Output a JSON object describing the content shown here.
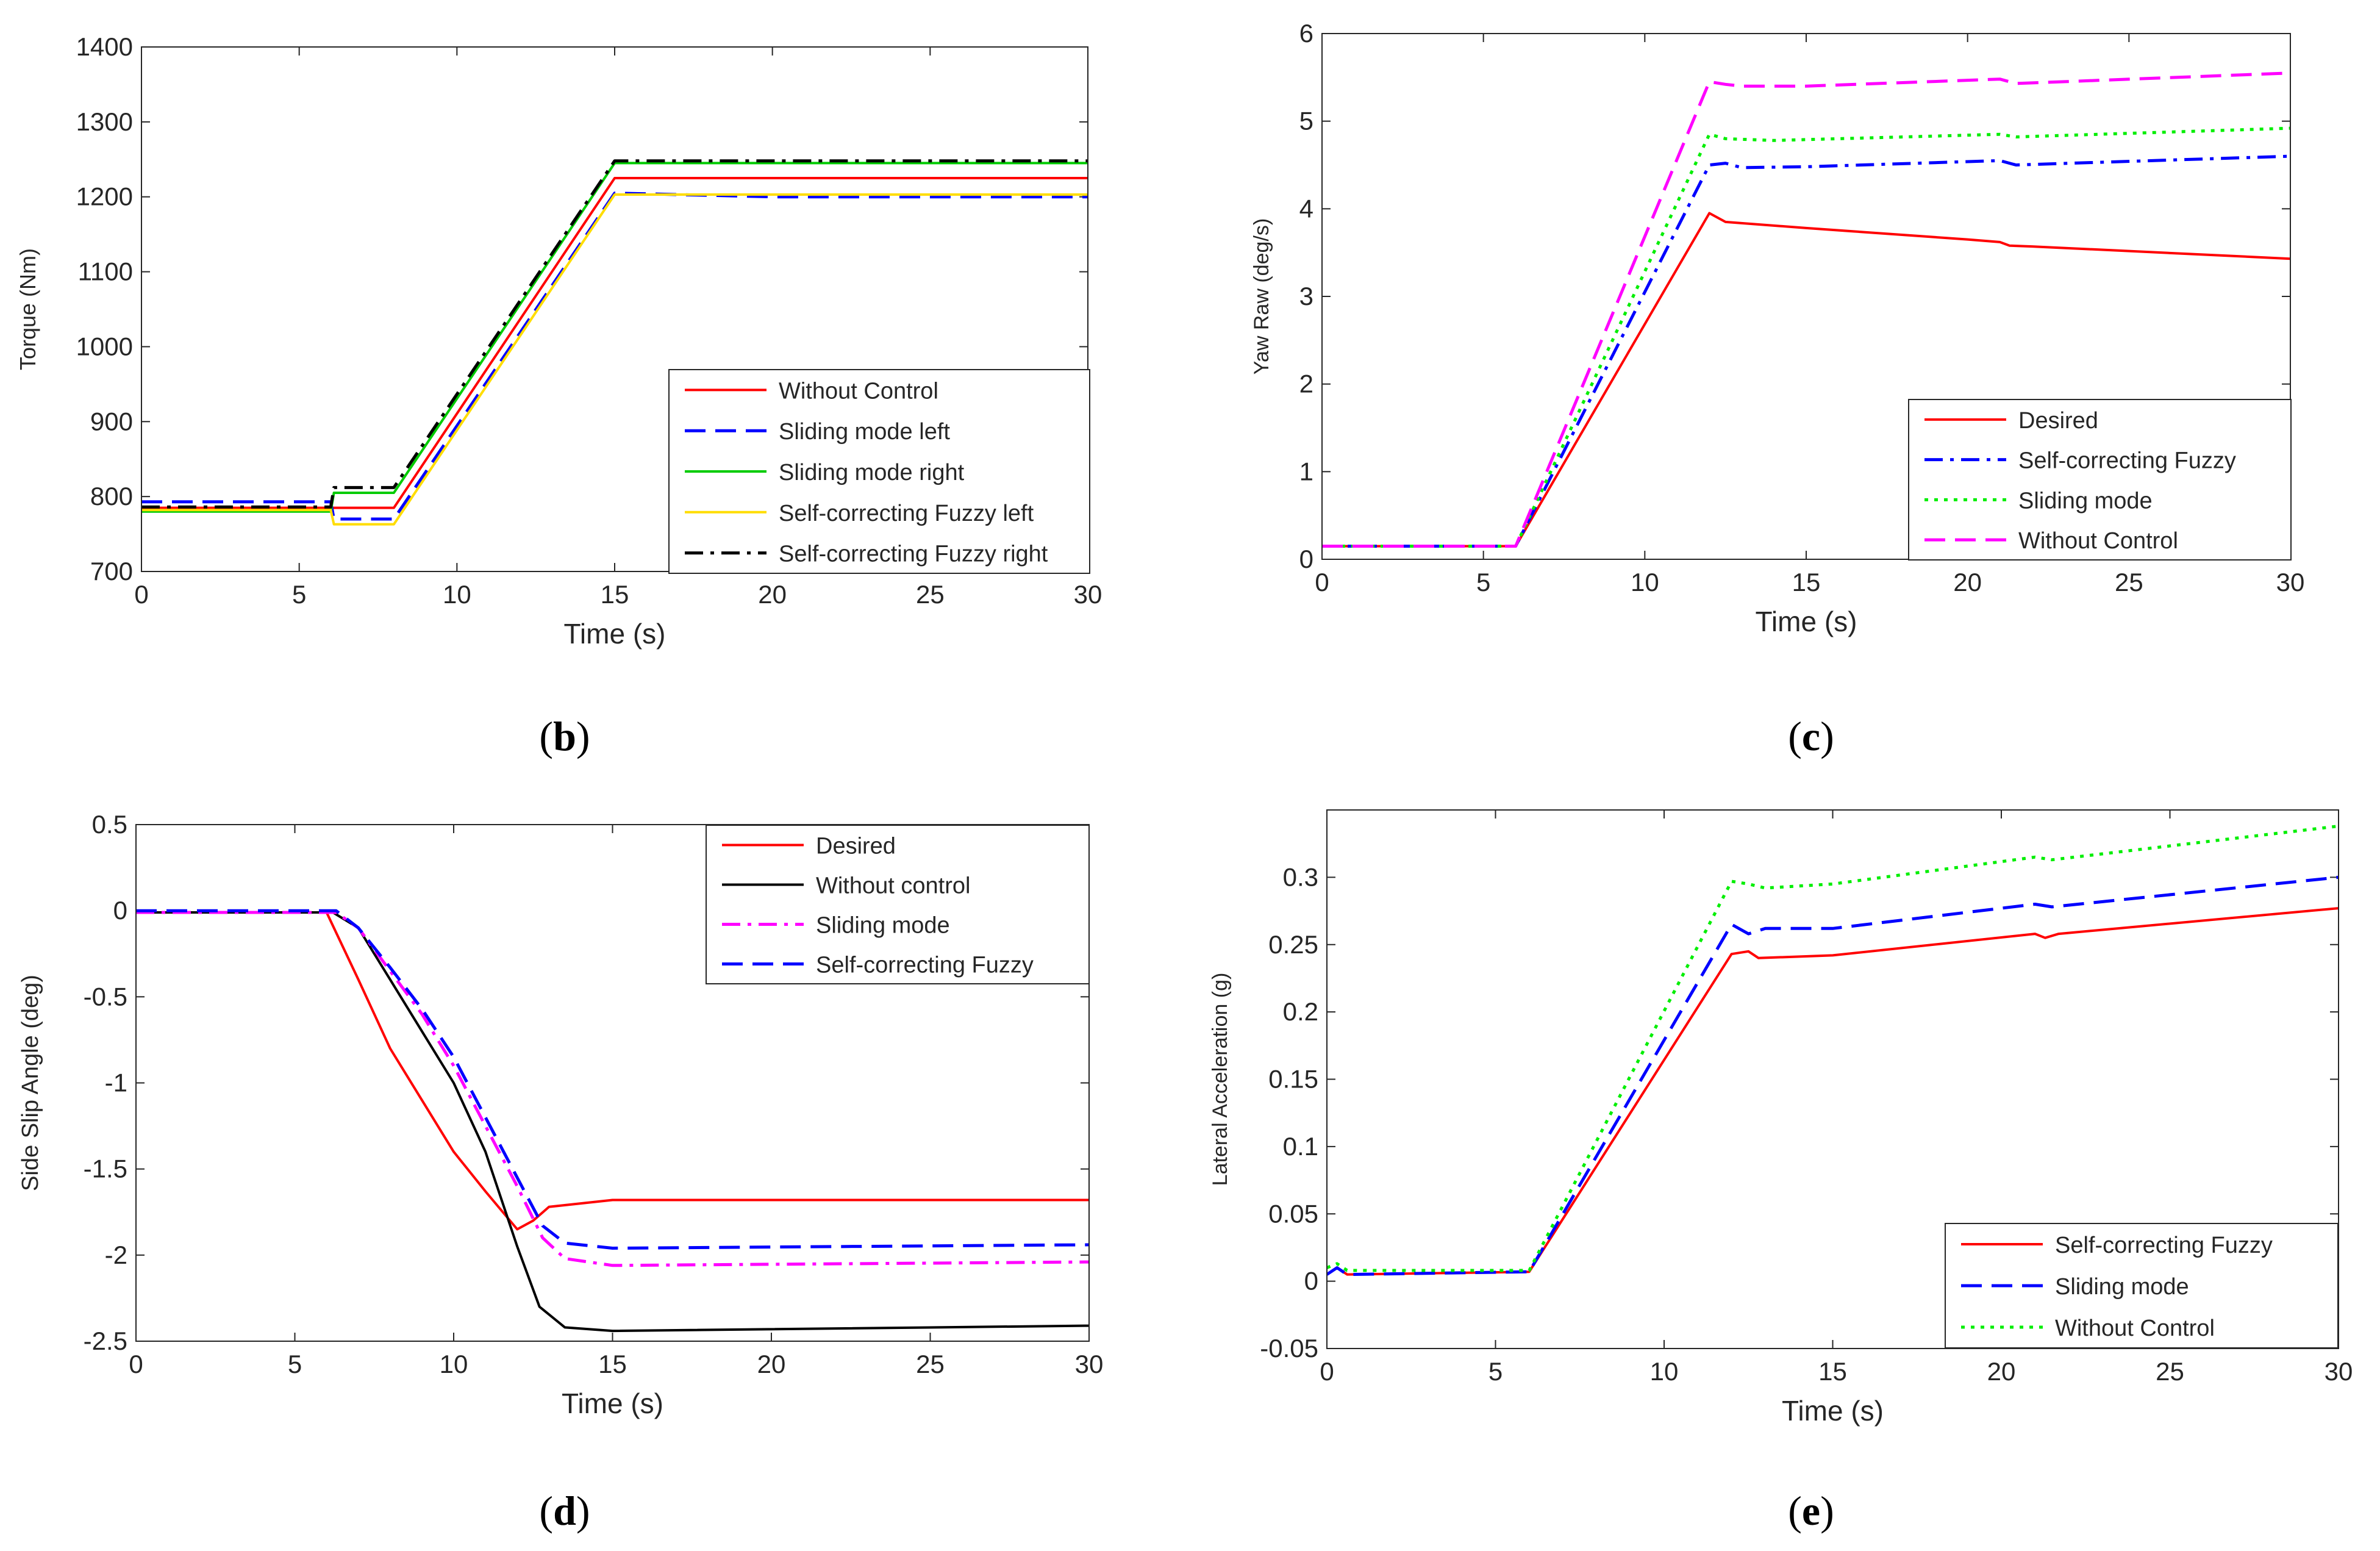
{
  "chart_data": [
    {
      "id": "b",
      "panel_label": "b",
      "type": "line",
      "xlabel": "Time (s)",
      "ylabel": "Torque (Nm)",
      "xlim": [
        0,
        30
      ],
      "ylim": [
        700,
        1400
      ],
      "xticks": [
        0,
        5,
        10,
        15,
        20,
        25,
        30
      ],
      "yticks": [
        700,
        800,
        900,
        1000,
        1100,
        1200,
        1300,
        1400
      ],
      "legend_position": "bottom-right",
      "series": [
        {
          "name": "Without Control",
          "color": "#ff0000",
          "dash": "solid",
          "points": [
            [
              0,
              785
            ],
            [
              6,
              785
            ],
            [
              6,
              785
            ],
            [
              8,
              785
            ],
            [
              15,
              1225
            ],
            [
              30,
              1225
            ]
          ]
        },
        {
          "name": "Sliding mode left",
          "color": "#0000ff",
          "dash": "dash",
          "points": [
            [
              0,
              793
            ],
            [
              6,
              793
            ],
            [
              6.1,
              770
            ],
            [
              8,
              770
            ],
            [
              15,
              1205
            ],
            [
              20,
              1200
            ],
            [
              30,
              1200
            ]
          ]
        },
        {
          "name": "Sliding mode right",
          "color": "#00cc00",
          "dash": "solid",
          "points": [
            [
              0,
              780
            ],
            [
              6,
              780
            ],
            [
              6.1,
              805
            ],
            [
              8,
              805
            ],
            [
              15,
              1245
            ],
            [
              30,
              1245
            ]
          ]
        },
        {
          "name": "Self-correcting Fuzzy left",
          "color": "#ffdd00",
          "dash": "solid",
          "points": [
            [
              0,
              782
            ],
            [
              6,
              782
            ],
            [
              6.1,
              763
            ],
            [
              8,
              763
            ],
            [
              15,
              1203
            ],
            [
              30,
              1203
            ]
          ]
        },
        {
          "name": "Self-correcting Fuzzy right",
          "color": "#000000",
          "dash": "dashdot",
          "points": [
            [
              0,
              786
            ],
            [
              6,
              786
            ],
            [
              6.1,
              812
            ],
            [
              8,
              812
            ],
            [
              15,
              1248
            ],
            [
              30,
              1248
            ]
          ]
        }
      ]
    },
    {
      "id": "c",
      "panel_label": "c",
      "type": "line",
      "xlabel": "Time (s)",
      "ylabel": "Yaw Raw (deg/s)",
      "xlim": [
        0,
        30
      ],
      "ylim": [
        0,
        6
      ],
      "xticks": [
        0,
        5,
        10,
        15,
        20,
        25,
        30
      ],
      "yticks": [
        0,
        1,
        2,
        3,
        4,
        5,
        6
      ],
      "legend_position": "bottom-right",
      "series": [
        {
          "name": "Desired",
          "color": "#ff0000",
          "dash": "solid",
          "points": [
            [
              0,
              0.15
            ],
            [
              6,
              0.15
            ],
            [
              12,
              3.95
            ],
            [
              12.5,
              3.85
            ],
            [
              15,
              3.78
            ],
            [
              20,
              3.65
            ],
            [
              21,
              3.62
            ],
            [
              21.3,
              3.58
            ],
            [
              22,
              3.57
            ],
            [
              30,
              3.43
            ]
          ]
        },
        {
          "name": "Self-correcting Fuzzy",
          "color": "#0000ff",
          "dash": "dashdot",
          "points": [
            [
              0,
              0.15
            ],
            [
              6,
              0.15
            ],
            [
              12,
              4.5
            ],
            [
              12.5,
              4.52
            ],
            [
              13,
              4.47
            ],
            [
              15,
              4.48
            ],
            [
              21,
              4.55
            ],
            [
              21.5,
              4.5
            ],
            [
              30,
              4.6
            ]
          ]
        },
        {
          "name": "Sliding mode",
          "color": "#00ee00",
          "dash": "dot",
          "points": [
            [
              0,
              0.15
            ],
            [
              6,
              0.15
            ],
            [
              12,
              4.85
            ],
            [
              12.5,
              4.8
            ],
            [
              14,
              4.78
            ],
            [
              21,
              4.85
            ],
            [
              21.5,
              4.82
            ],
            [
              30,
              4.92
            ]
          ]
        },
        {
          "name": "Without Control",
          "color": "#ff00ff",
          "dash": "dash",
          "points": [
            [
              0,
              0.15
            ],
            [
              6,
              0.15
            ],
            [
              12,
              5.45
            ],
            [
              12.5,
              5.42
            ],
            [
              13,
              5.4
            ],
            [
              15,
              5.4
            ],
            [
              21,
              5.48
            ],
            [
              21.5,
              5.43
            ],
            [
              30,
              5.55
            ]
          ]
        }
      ]
    },
    {
      "id": "d",
      "panel_label": "d",
      "type": "line",
      "xlabel": "Time (s)",
      "ylabel": "Side Slip Angle (deg)",
      "xlim": [
        0,
        30
      ],
      "ylim": [
        -2.5,
        0.5
      ],
      "xticks": [
        0,
        5,
        10,
        15,
        20,
        25,
        30
      ],
      "yticks": [
        -2.5,
        -2,
        -1.5,
        -1,
        -0.5,
        0,
        0.5
      ],
      "yticklabels": [
        "-2.5",
        "-2",
        "-1.5",
        "-1",
        "-0.5",
        "0",
        "0.5"
      ],
      "legend_position": "top-right",
      "series": [
        {
          "name": "Desired",
          "color": "#ff0000",
          "dash": "solid",
          "points": [
            [
              0,
              -0.01
            ],
            [
              6,
              -0.01
            ],
            [
              7,
              -0.4
            ],
            [
              8,
              -0.8
            ],
            [
              9,
              -1.1
            ],
            [
              10,
              -1.4
            ],
            [
              11,
              -1.63
            ],
            [
              12,
              -1.85
            ],
            [
              12.5,
              -1.8
            ],
            [
              13,
              -1.72
            ],
            [
              15,
              -1.68
            ],
            [
              30,
              -1.68
            ]
          ]
        },
        {
          "name": "Without control",
          "color": "#000000",
          "dash": "solid",
          "points": [
            [
              0,
              -0.01
            ],
            [
              6.2,
              -0.01
            ],
            [
              7,
              -0.1
            ],
            [
              8,
              -0.4
            ],
            [
              9,
              -0.7
            ],
            [
              10,
              -1.0
            ],
            [
              11,
              -1.4
            ],
            [
              12,
              -1.95
            ],
            [
              12.7,
              -2.3
            ],
            [
              13.5,
              -2.42
            ],
            [
              15,
              -2.44
            ],
            [
              30,
              -2.41
            ]
          ]
        },
        {
          "name": "Sliding mode",
          "color": "#ff00ff",
          "dash": "dashdot",
          "points": [
            [
              0,
              -0.01
            ],
            [
              6.3,
              -0.01
            ],
            [
              7,
              -0.1
            ],
            [
              8,
              -0.35
            ],
            [
              9,
              -0.6
            ],
            [
              10,
              -0.9
            ],
            [
              11,
              -1.25
            ],
            [
              12,
              -1.6
            ],
            [
              12.8,
              -1.9
            ],
            [
              13.5,
              -2.02
            ],
            [
              15,
              -2.06
            ],
            [
              30,
              -2.04
            ]
          ]
        },
        {
          "name": "Self-correcting Fuzzy",
          "color": "#0000ff",
          "dash": "dash",
          "points": [
            [
              0,
              0.0
            ],
            [
              6.3,
              0.0
            ],
            [
              7,
              -0.1
            ],
            [
              8,
              -0.33
            ],
            [
              9,
              -0.57
            ],
            [
              10,
              -0.85
            ],
            [
              11,
              -1.2
            ],
            [
              12,
              -1.55
            ],
            [
              12.8,
              -1.83
            ],
            [
              13.5,
              -1.93
            ],
            [
              15,
              -1.96
            ],
            [
              30,
              -1.94
            ]
          ]
        }
      ]
    },
    {
      "id": "e",
      "panel_label": "e",
      "type": "line",
      "xlabel": "Time (s)",
      "ylabel": "Lateral Acceleration (g)",
      "xlim": [
        0,
        30
      ],
      "ylim": [
        -0.05,
        0.35
      ],
      "xticks": [
        0,
        5,
        10,
        15,
        20,
        25,
        30
      ],
      "yticks": [
        -0.05,
        0,
        0.05,
        0.1,
        0.15,
        0.2,
        0.25,
        0.3
      ],
      "yticklabels": [
        "-0.05",
        "0",
        "0.05",
        "0.1",
        "0.15",
        "0.2",
        "0.25",
        "0.3"
      ],
      "legend_position": "bottom-right",
      "series": [
        {
          "name": "Self-correcting Fuzzy",
          "color": "#ff0000",
          "dash": "solid",
          "points": [
            [
              0,
              0.005
            ],
            [
              0.3,
              0.01
            ],
            [
              0.6,
              0.005
            ],
            [
              6,
              0.007
            ],
            [
              12,
              0.243
            ],
            [
              12.5,
              0.245
            ],
            [
              12.8,
              0.24
            ],
            [
              15,
              0.242
            ],
            [
              21,
              0.258
            ],
            [
              21.3,
              0.255
            ],
            [
              21.7,
              0.258
            ],
            [
              30,
              0.277
            ]
          ]
        },
        {
          "name": "Sliding mode",
          "color": "#0000ff",
          "dash": "dash",
          "points": [
            [
              0,
              0.005
            ],
            [
              0.3,
              0.01
            ],
            [
              0.6,
              0.005
            ],
            [
              6,
              0.007
            ],
            [
              12,
              0.265
            ],
            [
              12.5,
              0.258
            ],
            [
              13,
              0.262
            ],
            [
              15,
              0.262
            ],
            [
              21,
              0.28
            ],
            [
              21.5,
              0.278
            ],
            [
              30,
              0.3
            ]
          ]
        },
        {
          "name": "Without Control",
          "color": "#00ee00",
          "dash": "dot",
          "points": [
            [
              0,
              0.01
            ],
            [
              0.3,
              0.013
            ],
            [
              0.6,
              0.008
            ],
            [
              6,
              0.008
            ],
            [
              12,
              0.297
            ],
            [
              12.5,
              0.295
            ],
            [
              13,
              0.292
            ],
            [
              15,
              0.295
            ],
            [
              21,
              0.315
            ],
            [
              21.5,
              0.313
            ],
            [
              30,
              0.338
            ]
          ]
        }
      ]
    }
  ]
}
